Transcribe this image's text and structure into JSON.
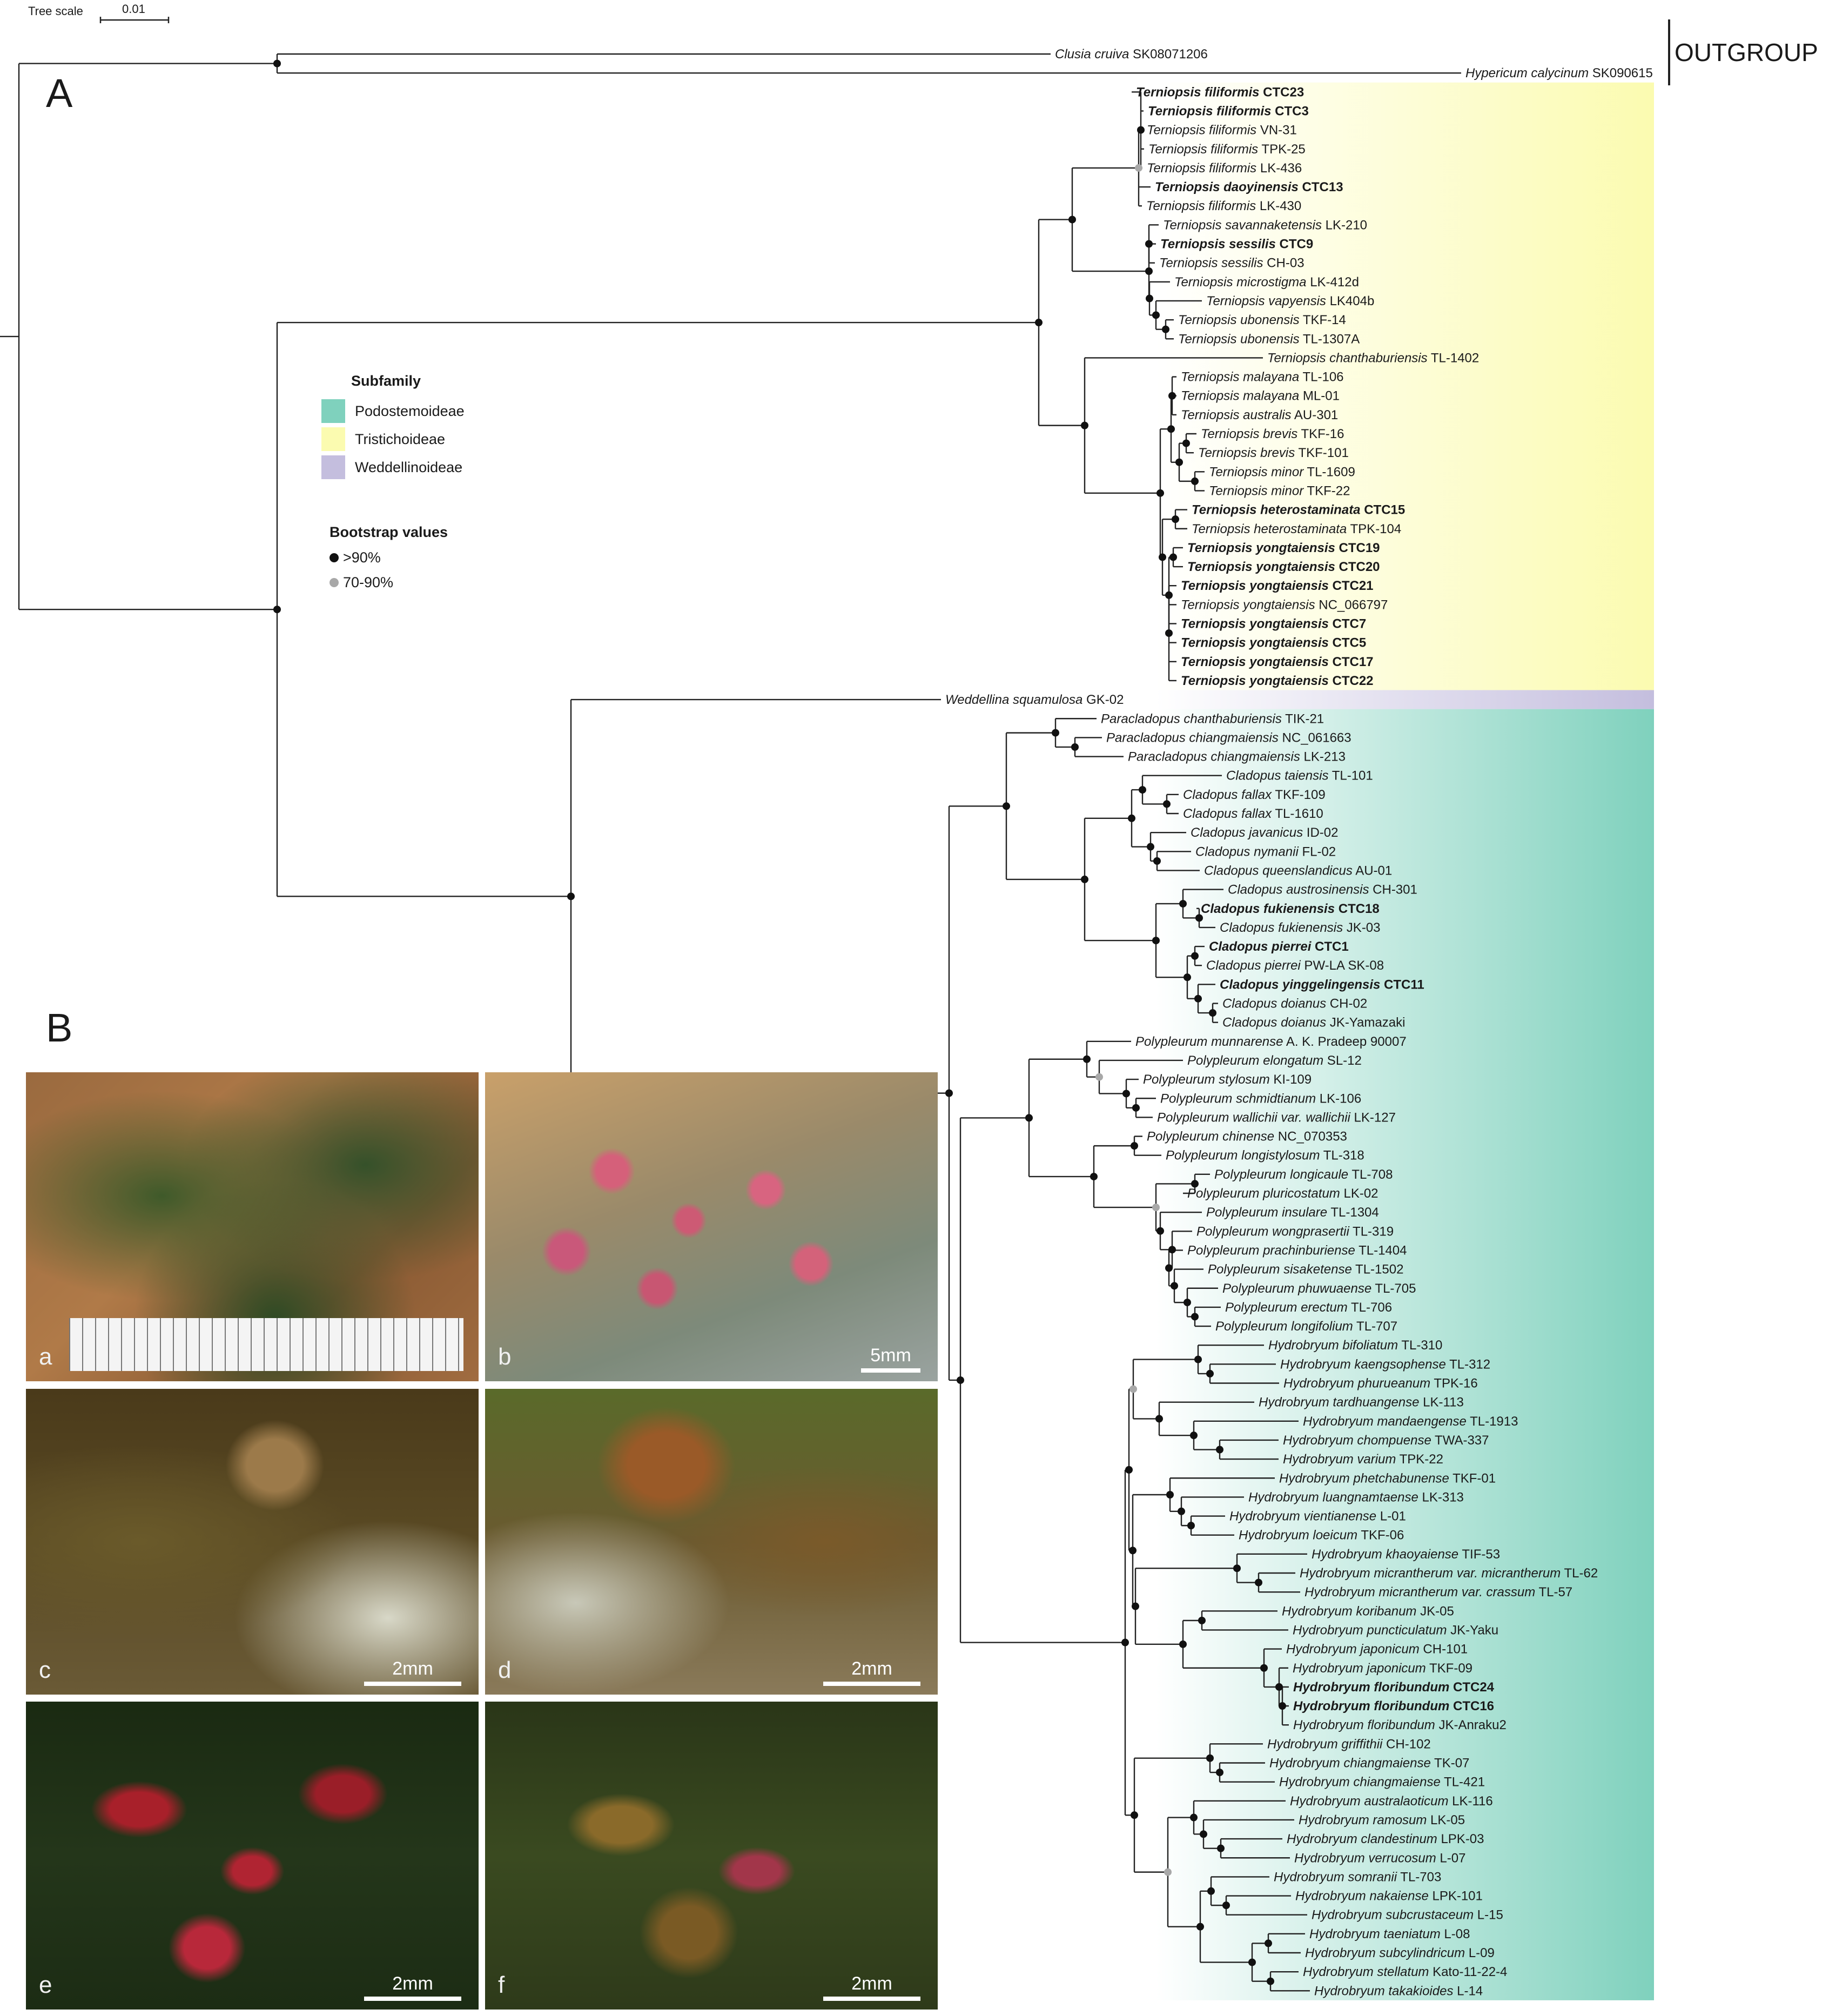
{
  "scale": {
    "label": "Tree scale",
    "value": "0.01"
  },
  "panel_a": "A",
  "panel_b": "B",
  "outgroup_label": "OUTGROUP",
  "legend": {
    "title": "Subfamily",
    "items": [
      {
        "label": "Podostemoideae",
        "color": "#7fd1bd"
      },
      {
        "label": "Tristichoideae",
        "color": "#fbfbb0"
      },
      {
        "label": "Weddellinoideae",
        "color": "#c4bede"
      }
    ]
  },
  "bootstrap": {
    "title": "Bootstrap values",
    "items": [
      {
        "label": ">90%",
        "color": "#111111"
      },
      {
        "label": "70-90%",
        "color": "#a8a8a8"
      }
    ]
  },
  "taxa": [
    {
      "species": "Clusia cruiva",
      "voucher": "SK08071206",
      "bold": false
    },
    {
      "species": "Hypericum calycinum",
      "voucher": "SK090615",
      "bold": false
    },
    {
      "species": "Terniopsis filiformis",
      "voucher": "CTC23",
      "bold": true
    },
    {
      "species": "Terniopsis filiformis",
      "voucher": "CTC3",
      "bold": true
    },
    {
      "species": "Terniopsis filiformis",
      "voucher": "VN-31",
      "bold": false
    },
    {
      "species": "Terniopsis filiformis",
      "voucher": "TPK-25",
      "bold": false
    },
    {
      "species": "Terniopsis filiformis",
      "voucher": "LK-436",
      "bold": false
    },
    {
      "species": "Terniopsis daoyinensis",
      "voucher": "CTC13",
      "bold": true
    },
    {
      "species": "Terniopsis filiformis",
      "voucher": "LK-430",
      "bold": false
    },
    {
      "species": "Terniopsis savannaketensis",
      "voucher": "LK-210",
      "bold": false
    },
    {
      "species": "Terniopsis sessilis",
      "voucher": "CTC9",
      "bold": true
    },
    {
      "species": "Terniopsis sessilis",
      "voucher": "CH-03",
      "bold": false
    },
    {
      "species": "Terniopsis microstigma",
      "voucher": "LK-412d",
      "bold": false
    },
    {
      "species": "Terniopsis vapyensis",
      "voucher": "LK404b",
      "bold": false
    },
    {
      "species": "Terniopsis ubonensis",
      "voucher": "TKF-14",
      "bold": false
    },
    {
      "species": "Terniopsis ubonensis",
      "voucher": "TL-1307A",
      "bold": false
    },
    {
      "species": "Terniopsis chanthaburiensis",
      "voucher": "TL-1402",
      "bold": false
    },
    {
      "species": "Terniopsis malayana",
      "voucher": "TL-106",
      "bold": false
    },
    {
      "species": "Terniopsis malayana",
      "voucher": "ML-01",
      "bold": false
    },
    {
      "species": "Terniopsis australis",
      "voucher": "AU-301",
      "bold": false
    },
    {
      "species": "Terniopsis brevis",
      "voucher": "TKF-16",
      "bold": false
    },
    {
      "species": "Terniopsis brevis",
      "voucher": "TKF-101",
      "bold": false
    },
    {
      "species": "Terniopsis minor",
      "voucher": "TL-1609",
      "bold": false
    },
    {
      "species": "Terniopsis minor",
      "voucher": "TKF-22",
      "bold": false
    },
    {
      "species": "Terniopsis heterostaminata",
      "voucher": "CTC15",
      "bold": true
    },
    {
      "species": "Terniopsis heterostaminata",
      "voucher": "TPK-104",
      "bold": false
    },
    {
      "species": "Terniopsis yongtaiensis",
      "voucher": "CTC19",
      "bold": true
    },
    {
      "species": "Terniopsis yongtaiensis",
      "voucher": "CTC20",
      "bold": true
    },
    {
      "species": "Terniopsis yongtaiensis",
      "voucher": "CTC21",
      "bold": true
    },
    {
      "species": "Terniopsis yongtaiensis",
      "voucher": "NC_066797",
      "bold": false
    },
    {
      "species": "Terniopsis yongtaiensis",
      "voucher": "CTC7",
      "bold": true
    },
    {
      "species": "Terniopsis yongtaiensis",
      "voucher": "CTC5",
      "bold": true
    },
    {
      "species": "Terniopsis yongtaiensis",
      "voucher": "CTC17",
      "bold": true
    },
    {
      "species": "Terniopsis yongtaiensis",
      "voucher": "CTC22",
      "bold": true
    },
    {
      "species": "Weddellina squamulosa",
      "voucher": "GK-02",
      "bold": false
    },
    {
      "species": "Paracladopus chanthaburiensis",
      "voucher": "TIK-21",
      "bold": false
    },
    {
      "species": "Paracladopus chiangmaiensis",
      "voucher": "NC_061663",
      "bold": false
    },
    {
      "species": "Paracladopus chiangmaiensis",
      "voucher": "LK-213",
      "bold": false
    },
    {
      "species": "Cladopus taiensis",
      "voucher": "TL-101",
      "bold": false
    },
    {
      "species": "Cladopus fallax",
      "voucher": "TKF-109",
      "bold": false
    },
    {
      "species": "Cladopus fallax",
      "voucher": "TL-1610",
      "bold": false
    },
    {
      "species": "Cladopus javanicus",
      "voucher": "ID-02",
      "bold": false
    },
    {
      "species": "Cladopus nymanii",
      "voucher": "FL-02",
      "bold": false
    },
    {
      "species": "Cladopus queenslandicus",
      "voucher": "AU-01",
      "bold": false
    },
    {
      "species": "Cladopus austrosinensis",
      "voucher": "CH-301",
      "bold": false
    },
    {
      "species": "Cladopus fukienensis",
      "voucher": "CTC18",
      "bold": true
    },
    {
      "species": "Cladopus fukienensis",
      "voucher": "JK-03",
      "bold": false
    },
    {
      "species": "Cladopus pierrei",
      "voucher": "CTC1",
      "bold": true
    },
    {
      "species": "Cladopus pierrei",
      "voucher": "PW-LA SK-08",
      "bold": false
    },
    {
      "species": "Cladopus yinggelingensis",
      "voucher": "CTC11",
      "bold": true
    },
    {
      "species": "Cladopus doianus",
      "voucher": "CH-02",
      "bold": false
    },
    {
      "species": "Cladopus doianus",
      "voucher": "JK-Yamazaki",
      "bold": false
    },
    {
      "species": "Polypleurum munnarense",
      "voucher": "A. K. Pradeep 90007",
      "bold": false
    },
    {
      "species": "Polypleurum elongatum",
      "voucher": "SL-12",
      "bold": false
    },
    {
      "species": "Polypleurum stylosum",
      "voucher": "KI-109",
      "bold": false
    },
    {
      "species": "Polypleurum schmidtianum",
      "voucher": "LK-106",
      "bold": false
    },
    {
      "species": "Polypleurum wallichii var. wallichii",
      "voucher": "LK-127",
      "bold": false
    },
    {
      "species": "Polypleurum chinense",
      "voucher": "NC_070353",
      "bold": false
    },
    {
      "species": "Polypleurum longistylosum",
      "voucher": "TL-318",
      "bold": false
    },
    {
      "species": "Polypleurum longicaule",
      "voucher": "TL-708",
      "bold": false
    },
    {
      "species": "Polypleurum pluricostatum",
      "voucher": "LK-02",
      "bold": false
    },
    {
      "species": "Polypleurum insulare",
      "voucher": "TL-1304",
      "bold": false
    },
    {
      "species": "Polypleurum wongprasertii",
      "voucher": "TL-319",
      "bold": false
    },
    {
      "species": "Polypleurum prachinburiense",
      "voucher": "TL-1404",
      "bold": false
    },
    {
      "species": "Polypleurum sisaketense",
      "voucher": "TL-1502",
      "bold": false
    },
    {
      "species": "Polypleurum phuwuaense",
      "voucher": "TL-705",
      "bold": false
    },
    {
      "species": "Polypleurum erectum",
      "voucher": "TL-706",
      "bold": false
    },
    {
      "species": "Polypleurum longifolium",
      "voucher": "TL-707",
      "bold": false
    },
    {
      "species": "Hydrobryum bifoliatum",
      "voucher": "TL-310",
      "bold": false
    },
    {
      "species": "Hydrobryum kaengsophense",
      "voucher": "TL-312",
      "bold": false
    },
    {
      "species": "Hydrobryum phurueanum",
      "voucher": "TPK-16",
      "bold": false
    },
    {
      "species": "Hydrobryum tardhuangense",
      "voucher": "LK-113",
      "bold": false
    },
    {
      "species": "Hydrobryum mandaengense",
      "voucher": "TL-1913",
      "bold": false
    },
    {
      "species": "Hydrobryum chompuense",
      "voucher": "TWA-337",
      "bold": false
    },
    {
      "species": "Hydrobryum varium",
      "voucher": "TPK-22",
      "bold": false
    },
    {
      "species": "Hydrobryum phetchabunense",
      "voucher": "TKF-01",
      "bold": false
    },
    {
      "species": "Hydrobryum luangnamtaense",
      "voucher": "LK-313",
      "bold": false
    },
    {
      "species": "Hydrobryum vientianense",
      "voucher": "L-01",
      "bold": false
    },
    {
      "species": "Hydrobryum loeicum",
      "voucher": "TKF-06",
      "bold": false
    },
    {
      "species": "Hydrobryum khaoyaiense",
      "voucher": "TIF-53",
      "bold": false
    },
    {
      "species": "Hydrobryum micrantherum var. micrantherum",
      "voucher": "TL-62",
      "bold": false
    },
    {
      "species": "Hydrobryum micrantherum var. crassum",
      "voucher": "TL-57",
      "bold": false
    },
    {
      "species": "Hydrobryum koribanum",
      "voucher": "JK-05",
      "bold": false
    },
    {
      "species": "Hydrobryum puncticulatum",
      "voucher": "JK-Yaku",
      "bold": false
    },
    {
      "species": "Hydrobryum japonicum",
      "voucher": "CH-101",
      "bold": false
    },
    {
      "species": "Hydrobryum japonicum",
      "voucher": "TKF-09",
      "bold": false
    },
    {
      "species": "Hydrobryum floribundum",
      "voucher": "CTC24",
      "bold": true
    },
    {
      "species": "Hydrobryum floribundum",
      "voucher": "CTC16",
      "bold": true
    },
    {
      "species": "Hydrobryum floribundum",
      "voucher": "JK-Anraku2",
      "bold": false
    },
    {
      "species": "Hydrobryum griffithii",
      "voucher": "CH-102",
      "bold": false
    },
    {
      "species": "Hydrobryum chiangmaiense",
      "voucher": "TK-07",
      "bold": false
    },
    {
      "species": "Hydrobryum chiangmaiense",
      "voucher": "TL-421",
      "bold": false
    },
    {
      "species": "Hydrobryum australaoticum",
      "voucher": "LK-116",
      "bold": false
    },
    {
      "species": "Hydrobryum ramosum",
      "voucher": "LK-05",
      "bold": false
    },
    {
      "species": "Hydrobryum clandestinum",
      "voucher": "LPK-03",
      "bold": false
    },
    {
      "species": "Hydrobryum verrucosum",
      "voucher": "L-07",
      "bold": false
    },
    {
      "species": "Hydrobryum somranii",
      "voucher": "TL-703",
      "bold": false
    },
    {
      "species": "Hydrobryum nakaiense",
      "voucher": "LPK-101",
      "bold": false
    },
    {
      "species": "Hydrobryum subcrustaceum",
      "voucher": "L-15",
      "bold": false
    },
    {
      "species": "Hydrobryum taeniatum",
      "voucher": "L-08",
      "bold": false
    },
    {
      "species": "Hydrobryum subcylindricum",
      "voucher": "L-09",
      "bold": false
    },
    {
      "species": "Hydrobryum stellatum",
      "voucher": "Kato-11-22-4",
      "bold": false
    },
    {
      "species": "Hydrobryum takakioides",
      "voucher": "L-14",
      "bold": false
    }
  ],
  "photos": [
    {
      "letter": "a",
      "scale": ""
    },
    {
      "letter": "b",
      "scale": "5mm"
    },
    {
      "letter": "c",
      "scale": "2mm"
    },
    {
      "letter": "d",
      "scale": "2mm"
    },
    {
      "letter": "e",
      "scale": "2mm"
    },
    {
      "letter": "f",
      "scale": "2mm"
    }
  ]
}
